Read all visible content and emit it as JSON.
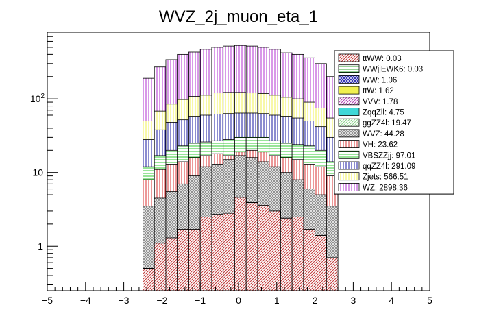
{
  "chart_data": {
    "type": "bar",
    "subtype": "stacked-histogram",
    "title": "WVZ_2j_muon_eta_1",
    "xlabel": "",
    "ylabel": "",
    "xlim": [
      -5,
      5
    ],
    "ylim": [
      0.25,
      800
    ],
    "yscale": "log",
    "x_ticks": [
      "−5",
      "−4",
      "−3",
      "−2",
      "−1",
      "0",
      "1",
      "2",
      "3",
      "4",
      "5"
    ],
    "x_tick_values": [
      -5,
      -4,
      -3,
      -2,
      -1,
      0,
      1,
      2,
      3,
      4,
      5
    ],
    "y_ticks": [
      "1",
      "10",
      "10"
    ],
    "y_ticks_sup": [
      "",
      "",
      "2"
    ],
    "y_tick_values": [
      1,
      10,
      100
    ],
    "bin_edges": [
      -2.5,
      -2.2,
      -1.9,
      -1.6,
      -1.3,
      -1.0,
      -0.7,
      -0.4,
      -0.1,
      0.2,
      0.5,
      0.8,
      1.1,
      1.4,
      1.7,
      2.0,
      2.3,
      2.6
    ],
    "legend_position": "top-right",
    "stack_cumulative": [
      {
        "name": "ttWW",
        "label": "ttWW: 0.03",
        "color": "#c23a3a",
        "hatch": "diag",
        "values": [
          0.5,
          1.1,
          1.3,
          1.7,
          1.7,
          2.5,
          2.7,
          2.8,
          4.6,
          3.9,
          3.6,
          3.0,
          2.4,
          2.5,
          1.7,
          1.4,
          0.7
        ]
      },
      {
        "name": "WWjjEWK6",
        "label": "WWjjEWK6: 0.03",
        "color": "#2ea32e",
        "hatch": "horiz",
        "values": [
          0.5,
          1.1,
          1.3,
          1.7,
          1.7,
          2.5,
          2.7,
          2.8,
          4.6,
          3.9,
          3.6,
          3.0,
          2.4,
          2.5,
          1.7,
          1.4,
          0.7
        ]
      },
      {
        "name": "WW",
        "label": "WW: 1.06",
        "color": "#2a2ab0",
        "hatch": "cross",
        "values": [
          0.5,
          1.1,
          1.3,
          1.7,
          1.7,
          2.5,
          2.7,
          2.8,
          4.6,
          3.9,
          3.6,
          3.0,
          2.4,
          2.5,
          1.7,
          1.4,
          0.7
        ]
      },
      {
        "name": "ttW",
        "label": "ttW: 1.62",
        "color": "#f0f050",
        "hatch": "solid",
        "values": [
          0.5,
          1.1,
          1.3,
          1.7,
          1.7,
          2.5,
          2.7,
          2.8,
          4.6,
          3.9,
          3.6,
          3.0,
          2.4,
          2.5,
          1.7,
          1.4,
          0.7
        ]
      },
      {
        "name": "VVV",
        "label": "VVV: 1.78",
        "color": "#b040b0",
        "hatch": "diag",
        "values": [
          0.5,
          1.1,
          1.3,
          1.7,
          1.7,
          2.5,
          2.7,
          2.8,
          4.6,
          3.9,
          3.6,
          3.0,
          2.4,
          2.5,
          1.7,
          1.4,
          0.7
        ]
      },
      {
        "name": "ZqqZll",
        "label": "ZqqZll: 4.75",
        "color": "#40d8d8",
        "hatch": "solid",
        "values": [
          0.5,
          1.1,
          1.3,
          1.7,
          1.7,
          2.5,
          2.7,
          2.8,
          4.6,
          3.9,
          3.6,
          3.0,
          2.4,
          2.5,
          1.7,
          1.4,
          0.7
        ]
      },
      {
        "name": "ggZZ4l",
        "label": "ggZZ4l: 19.47",
        "color": "#8ad08a",
        "hatch": "diag",
        "values": [
          0.5,
          1.1,
          1.3,
          1.7,
          1.7,
          2.5,
          2.7,
          2.8,
          4.6,
          3.9,
          3.6,
          3.0,
          2.4,
          2.5,
          1.7,
          1.4,
          0.7
        ]
      },
      {
        "name": "WVZ",
        "label": "WVZ: 44.28",
        "color": "#8a8a8a",
        "hatch": "cross",
        "values": [
          3.5,
          4.5,
          5.5,
          7,
          9,
          12,
          13,
          15,
          17,
          16,
          14,
          12,
          10,
          8,
          6,
          5,
          3.5
        ]
      },
      {
        "name": "VH",
        "label": "VH: 23.62",
        "color": "#d83030",
        "hatch": "vert",
        "values": [
          8,
          11,
          13,
          14,
          16,
          17,
          18,
          17,
          19,
          20,
          19,
          17,
          16,
          15,
          13,
          12,
          9
        ]
      },
      {
        "name": "VBSZZjj",
        "label": "VBSZZjj: 97.01",
        "color": "#30c830",
        "hatch": "horiz",
        "values": [
          12,
          17,
          20,
          23,
          25,
          26,
          27,
          28,
          30,
          30,
          30,
          27,
          25,
          24,
          23,
          20,
          14
        ]
      },
      {
        "name": "qqZZ4l",
        "label": "qqZZ4l: 291.09",
        "color": "#1818a0",
        "hatch": "vert",
        "values": [
          28,
          38,
          48,
          52,
          58,
          60,
          62,
          63,
          64,
          64,
          63,
          60,
          58,
          55,
          50,
          42,
          30
        ]
      },
      {
        "name": "Zjets",
        "label": "Zjets: 566.51",
        "color": "#f0f050",
        "hatch": "vert",
        "values": [
          50,
          68,
          85,
          98,
          108,
          112,
          120,
          122,
          122,
          120,
          118,
          112,
          105,
          100,
          90,
          75,
          55
        ]
      },
      {
        "name": "WZ",
        "label": "WZ: 2898.36",
        "color": "#b030d0",
        "hatch": "vert",
        "values": [
          190,
          270,
          340,
          400,
          430,
          470,
          500,
          520,
          530,
          520,
          500,
          470,
          420,
          400,
          360,
          300,
          200
        ]
      }
    ]
  }
}
